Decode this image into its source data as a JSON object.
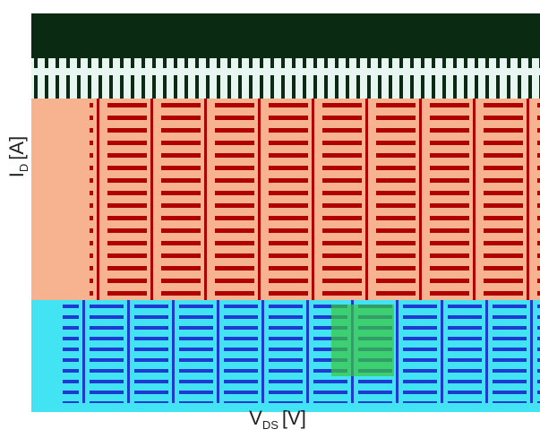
{
  "axes": {
    "y_label": {
      "main": "I",
      "sub": "D",
      "unit": "[A]"
    },
    "x_label": {
      "main": "V",
      "sub": "DS",
      "unit": "[V]"
    }
  }
}
